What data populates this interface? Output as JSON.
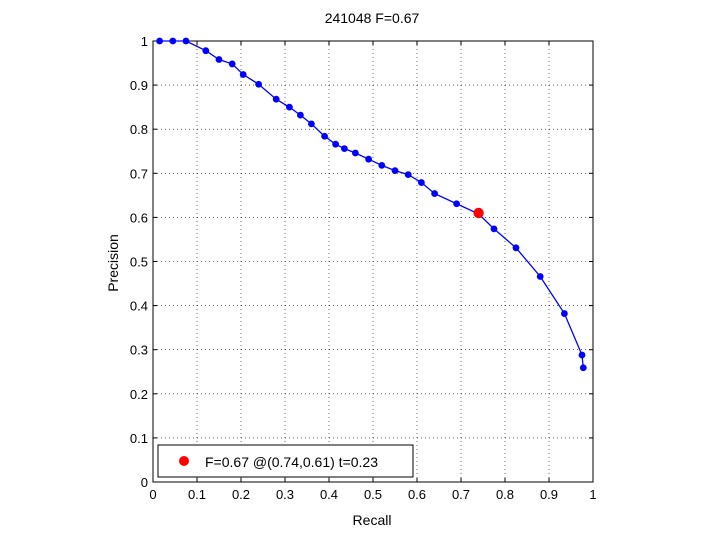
{
  "chart_data": {
    "type": "line",
    "title": "241048 F=0.67",
    "xlabel": "Recall",
    "ylabel": "Precision",
    "xlim": [
      0,
      1
    ],
    "ylim": [
      0,
      1
    ],
    "grid": true,
    "xticks": [
      0,
      0.1,
      0.2,
      0.3,
      0.4,
      0.5,
      0.6,
      0.7,
      0.8,
      0.9,
      1
    ],
    "yticks": [
      0,
      0.1,
      0.2,
      0.3,
      0.4,
      0.5,
      0.6,
      0.7,
      0.8,
      0.9,
      1
    ],
    "xtick_labels": [
      "0",
      "0.1",
      "0.2",
      "0.3",
      "0.4",
      "0.5",
      "0.6",
      "0.7",
      "0.8",
      "0.9",
      "1"
    ],
    "ytick_labels": [
      "0",
      "0.1",
      "0.2",
      "0.3",
      "0.4",
      "0.5",
      "0.6",
      "0.7",
      "0.8",
      "0.9",
      "1"
    ],
    "series": [
      {
        "color": "#0000ff",
        "x": [
          0.015,
          0.045,
          0.075,
          0.12,
          0.15,
          0.18,
          0.205,
          0.24,
          0.28,
          0.31,
          0.335,
          0.36,
          0.39,
          0.415,
          0.435,
          0.46,
          0.49,
          0.52,
          0.55,
          0.58,
          0.61,
          0.64,
          0.69,
          0.74,
          0.775,
          0.825,
          0.88,
          0.935,
          0.975,
          0.978
        ],
        "y": [
          1.0,
          1.0,
          1.0,
          0.978,
          0.958,
          0.948,
          0.924,
          0.902,
          0.868,
          0.85,
          0.832,
          0.812,
          0.784,
          0.766,
          0.756,
          0.746,
          0.732,
          0.718,
          0.706,
          0.697,
          0.679,
          0.654,
          0.631,
          0.608,
          0.574,
          0.531,
          0.466,
          0.382,
          0.288,
          0.259
        ]
      }
    ],
    "highlight": {
      "x": 0.74,
      "y": 0.61,
      "color": "#ff0000"
    },
    "legend": {
      "placement": "bottom-left",
      "label": "F=0.67 @(0.74,0.61) t=0.23"
    }
  }
}
